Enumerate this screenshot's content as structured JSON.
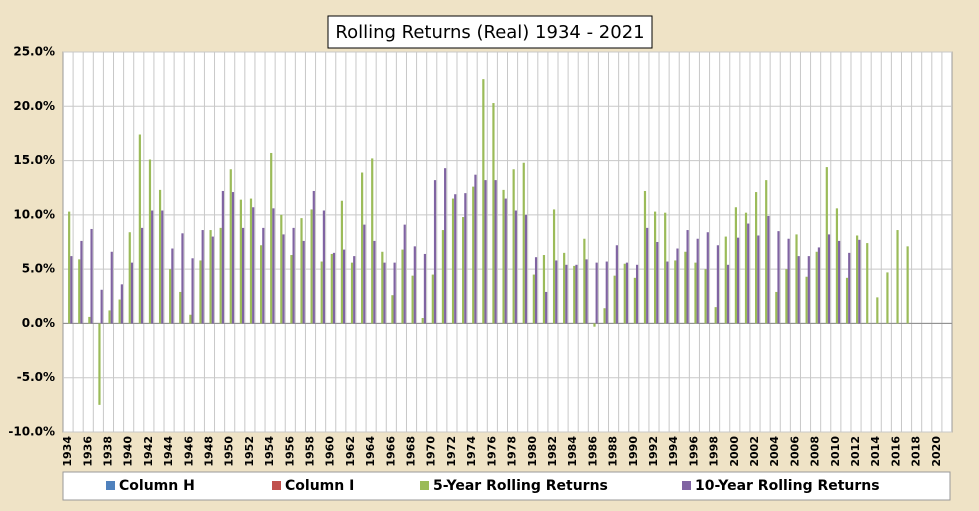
{
  "chart_data": {
    "type": "bar",
    "title": "Rolling Returns (Real) 1934 - 2021",
    "categories": [
      "1934",
      null,
      "1936",
      null,
      "1938",
      null,
      "1940",
      null,
      "1942",
      null,
      "1944",
      null,
      "1946",
      null,
      "1948",
      null,
      "1950",
      null,
      "1952",
      null,
      "1954",
      null,
      "1956",
      null,
      "1958",
      null,
      "1960",
      null,
      "1962",
      null,
      "1964",
      null,
      "1966",
      null,
      "1968",
      null,
      "1970",
      null,
      "1972",
      null,
      "1974",
      null,
      "1976",
      null,
      "1978",
      null,
      "1980",
      null,
      "1982",
      null,
      "1984",
      null,
      "1986",
      null,
      "1988",
      null,
      "1990",
      null,
      "1992",
      null,
      "1994",
      null,
      "1996",
      null,
      "1998",
      null,
      "2000",
      null,
      "2002",
      null,
      "2004",
      null,
      "2006",
      null,
      "2008",
      null,
      "2010",
      null,
      "2012",
      null,
      "2014",
      null,
      "2016",
      null,
      "2018",
      null,
      "2020",
      null
    ],
    "series": [
      {
        "name": "Column H",
        "color": "#4f81bd",
        "values": [
          null,
          null,
          null,
          null,
          null,
          null,
          null,
          null,
          null,
          null,
          null,
          null,
          null,
          null,
          null,
          null,
          null,
          null,
          null,
          null,
          null,
          null,
          null,
          null,
          null,
          null,
          null,
          null,
          null,
          null,
          null,
          null,
          null,
          null,
          null,
          null,
          null,
          null,
          null,
          null,
          null,
          null,
          null,
          null,
          null,
          null,
          null,
          null,
          null,
          null,
          null,
          null,
          null,
          null,
          null,
          null,
          null,
          null,
          null,
          null,
          null,
          null,
          null,
          null,
          null,
          null,
          null,
          null,
          null,
          null,
          null,
          null,
          null,
          null,
          null,
          null,
          null,
          null,
          null,
          null,
          null,
          null,
          null,
          null,
          null,
          null,
          null,
          null
        ]
      },
      {
        "name": "Column I",
        "color": "#c0504d",
        "values": [
          null,
          null,
          null,
          null,
          null,
          null,
          null,
          null,
          null,
          null,
          null,
          null,
          null,
          null,
          null,
          null,
          null,
          null,
          null,
          null,
          null,
          null,
          null,
          null,
          null,
          null,
          null,
          null,
          null,
          null,
          null,
          null,
          null,
          null,
          null,
          null,
          null,
          null,
          null,
          null,
          null,
          null,
          null,
          null,
          null,
          null,
          null,
          null,
          null,
          null,
          null,
          null,
          null,
          null,
          null,
          null,
          null,
          null,
          null,
          null,
          null,
          null,
          null,
          null,
          null,
          null,
          null,
          null,
          null,
          null,
          null,
          null,
          null,
          null,
          null,
          null,
          null,
          null,
          null,
          null,
          null,
          null,
          null,
          null,
          null,
          null,
          null,
          null
        ]
      },
      {
        "name": "5-Year Rolling Returns",
        "color": "#9bbb59",
        "values": [
          10.3,
          5.9,
          0.6,
          -7.5,
          1.2,
          2.2,
          8.4,
          17.4,
          15.1,
          12.3,
          5.0,
          2.9,
          0.8,
          5.8,
          8.6,
          8.8,
          14.2,
          11.4,
          11.5,
          7.2,
          15.7,
          10.0,
          6.3,
          9.7,
          10.5,
          5.7,
          6.4,
          11.3,
          5.6,
          13.9,
          15.2,
          6.6,
          2.6,
          6.8,
          4.4,
          0.5,
          4.5,
          8.6,
          11.5,
          9.8,
          12.6,
          22.5,
          20.3,
          12.3,
          14.2,
          14.8,
          4.5,
          6.3,
          10.5,
          6.5,
          5.3,
          7.8,
          -0.3,
          1.4,
          4.4,
          5.5,
          4.2,
          12.2,
          10.3,
          10.2,
          5.8,
          6.6,
          5.6,
          5.0,
          1.5,
          8.0,
          10.7,
          10.2,
          12.1,
          13.2,
          2.9,
          5.0,
          8.2,
          4.3,
          6.6,
          14.4,
          10.6,
          4.2,
          8.1,
          7.4,
          2.4,
          4.7,
          8.6,
          7.1,
          null,
          null,
          null,
          null
        ]
      },
      {
        "name": "10-Year Rolling Returns",
        "color": "#8064a2",
        "values": [
          6.2,
          7.6,
          8.7,
          3.1,
          6.6,
          3.6,
          5.6,
          8.8,
          10.4,
          10.4,
          6.9,
          8.3,
          6.0,
          8.6,
          8.0,
          12.2,
          12.1,
          8.8,
          10.7,
          8.8,
          10.6,
          8.2,
          8.8,
          7.6,
          12.2,
          10.4,
          6.5,
          6.8,
          6.2,
          9.1,
          7.6,
          5.6,
          5.6,
          9.1,
          7.1,
          6.4,
          13.2,
          14.3,
          11.9,
          12.0,
          13.7,
          13.2,
          13.2,
          11.5,
          10.4,
          10.0,
          6.1,
          2.9,
          5.8,
          5.4,
          5.4,
          5.9,
          5.6,
          5.7,
          7.2,
          5.6,
          5.4,
          8.8,
          7.5,
          5.7,
          6.9,
          8.6,
          7.8,
          8.4,
          7.2,
          5.4,
          7.9,
          9.2,
          8.1,
          9.9,
          8.5,
          7.8,
          6.2,
          6.2,
          7.0,
          8.2,
          7.6,
          6.5,
          7.7,
          null,
          null,
          null,
          null,
          null,
          null,
          null,
          null,
          null
        ]
      }
    ],
    "ylim": [
      -10,
      25
    ],
    "yticks": [
      {
        "value": -10,
        "label": "-10.0%"
      },
      {
        "value": -5,
        "label": "-5.0%"
      },
      {
        "value": 0,
        "label": "0.0%"
      },
      {
        "value": 5,
        "label": "5.0%"
      },
      {
        "value": 10,
        "label": "10.0%"
      },
      {
        "value": 15,
        "label": "15.0%"
      },
      {
        "value": 20,
        "label": "20.0%"
      },
      {
        "value": 25,
        "label": "25.0%"
      }
    ],
    "grid": true
  }
}
